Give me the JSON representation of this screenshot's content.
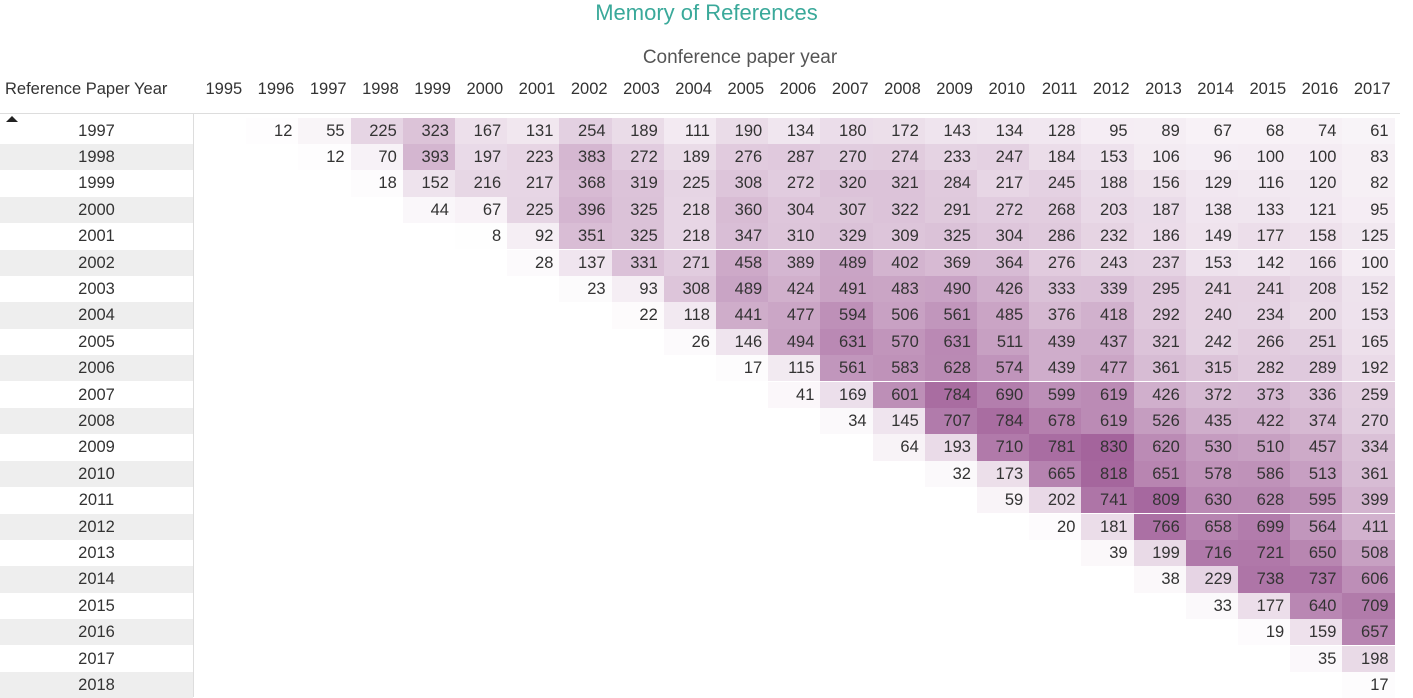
{
  "chart_data": {
    "type": "heatmap",
    "title": "Memory of References",
    "xlabel": "Conference paper year",
    "ylabel": "Reference Paper Year",
    "sort": "ascending",
    "color_low": "#ffffff",
    "color_high": "#a4649c",
    "columns": [
      "1995",
      "1996",
      "1997",
      "1998",
      "1999",
      "2000",
      "2001",
      "2002",
      "2003",
      "2004",
      "2005",
      "2006",
      "2007",
      "2008",
      "2009",
      "2010",
      "2011",
      "2012",
      "2013",
      "2014",
      "2015",
      "2016",
      "2017"
    ],
    "rows": [
      {
        "year": "1997",
        "values": [
          null,
          12,
          55,
          225,
          323,
          167,
          131,
          254,
          189,
          111,
          190,
          134,
          180,
          172,
          143,
          134,
          128,
          95,
          89,
          67,
          68,
          74,
          61
        ]
      },
      {
        "year": "1998",
        "values": [
          null,
          null,
          12,
          70,
          393,
          197,
          223,
          383,
          272,
          189,
          276,
          287,
          270,
          274,
          233,
          247,
          184,
          153,
          106,
          96,
          100,
          100,
          83
        ]
      },
      {
        "year": "1999",
        "values": [
          null,
          null,
          null,
          18,
          152,
          216,
          217,
          368,
          319,
          225,
          308,
          272,
          320,
          321,
          284,
          217,
          245,
          188,
          156,
          129,
          116,
          120,
          82
        ]
      },
      {
        "year": "2000",
        "values": [
          null,
          null,
          null,
          null,
          44,
          67,
          225,
          396,
          325,
          218,
          360,
          304,
          307,
          322,
          291,
          272,
          268,
          203,
          187,
          138,
          133,
          121,
          95
        ]
      },
      {
        "year": "2001",
        "values": [
          null,
          null,
          null,
          null,
          null,
          8,
          92,
          351,
          325,
          218,
          347,
          310,
          329,
          309,
          325,
          304,
          286,
          232,
          186,
          149,
          177,
          158,
          125
        ]
      },
      {
        "year": "2002",
        "values": [
          null,
          null,
          null,
          null,
          null,
          null,
          28,
          137,
          331,
          271,
          458,
          389,
          489,
          402,
          369,
          364,
          276,
          243,
          237,
          153,
          142,
          166,
          100
        ]
      },
      {
        "year": "2003",
        "values": [
          null,
          null,
          null,
          null,
          null,
          null,
          null,
          23,
          93,
          308,
          489,
          424,
          491,
          483,
          490,
          426,
          333,
          339,
          295,
          241,
          241,
          208,
          152
        ]
      },
      {
        "year": "2004",
        "values": [
          null,
          null,
          null,
          null,
          null,
          null,
          null,
          null,
          22,
          118,
          441,
          477,
          594,
          506,
          561,
          485,
          376,
          418,
          292,
          240,
          234,
          200,
          153
        ]
      },
      {
        "year": "2005",
        "values": [
          null,
          null,
          null,
          null,
          null,
          null,
          null,
          null,
          null,
          26,
          146,
          494,
          631,
          570,
          631,
          511,
          439,
          437,
          321,
          242,
          266,
          251,
          165
        ]
      },
      {
        "year": "2006",
        "values": [
          null,
          null,
          null,
          null,
          null,
          null,
          null,
          null,
          null,
          null,
          17,
          115,
          561,
          583,
          628,
          574,
          439,
          477,
          361,
          315,
          282,
          289,
          192
        ]
      },
      {
        "year": "2007",
        "values": [
          null,
          null,
          null,
          null,
          null,
          null,
          null,
          null,
          null,
          null,
          null,
          41,
          169,
          601,
          784,
          690,
          599,
          619,
          426,
          372,
          373,
          336,
          259
        ]
      },
      {
        "year": "2008",
        "values": [
          null,
          null,
          null,
          null,
          null,
          null,
          null,
          null,
          null,
          null,
          null,
          null,
          34,
          145,
          707,
          784,
          678,
          619,
          526,
          435,
          422,
          374,
          270
        ]
      },
      {
        "year": "2009",
        "values": [
          null,
          null,
          null,
          null,
          null,
          null,
          null,
          null,
          null,
          null,
          null,
          null,
          null,
          64,
          193,
          710,
          781,
          830,
          620,
          530,
          510,
          457,
          334
        ]
      },
      {
        "year": "2010",
        "values": [
          null,
          null,
          null,
          null,
          null,
          null,
          null,
          null,
          null,
          null,
          null,
          null,
          null,
          null,
          32,
          173,
          665,
          818,
          651,
          578,
          586,
          513,
          361
        ]
      },
      {
        "year": "2011",
        "values": [
          null,
          null,
          null,
          null,
          null,
          null,
          null,
          null,
          null,
          null,
          null,
          null,
          null,
          null,
          null,
          59,
          202,
          741,
          809,
          630,
          628,
          595,
          399
        ]
      },
      {
        "year": "2012",
        "values": [
          null,
          null,
          null,
          null,
          null,
          null,
          null,
          null,
          null,
          null,
          null,
          null,
          null,
          null,
          null,
          null,
          20,
          181,
          766,
          658,
          699,
          564,
          411
        ]
      },
      {
        "year": "2013",
        "values": [
          null,
          null,
          null,
          null,
          null,
          null,
          null,
          null,
          null,
          null,
          null,
          null,
          null,
          null,
          null,
          null,
          null,
          39,
          199,
          716,
          721,
          650,
          508
        ]
      },
      {
        "year": "2014",
        "values": [
          null,
          null,
          null,
          null,
          null,
          null,
          null,
          null,
          null,
          null,
          null,
          null,
          null,
          null,
          null,
          null,
          null,
          null,
          38,
          229,
          738,
          737,
          606
        ]
      },
      {
        "year": "2015",
        "values": [
          null,
          null,
          null,
          null,
          null,
          null,
          null,
          null,
          null,
          null,
          null,
          null,
          null,
          null,
          null,
          null,
          null,
          null,
          null,
          33,
          177,
          640,
          709
        ]
      },
      {
        "year": "2016",
        "values": [
          null,
          null,
          null,
          null,
          null,
          null,
          null,
          null,
          null,
          null,
          null,
          null,
          null,
          null,
          null,
          null,
          null,
          null,
          null,
          null,
          19,
          159,
          657
        ]
      },
      {
        "year": "2017",
        "values": [
          null,
          null,
          null,
          null,
          null,
          null,
          null,
          null,
          null,
          null,
          null,
          null,
          null,
          null,
          null,
          null,
          null,
          null,
          null,
          null,
          null,
          35,
          198
        ]
      },
      {
        "year": "2018",
        "values": [
          null,
          null,
          null,
          null,
          null,
          null,
          null,
          null,
          null,
          null,
          null,
          null,
          null,
          null,
          null,
          null,
          null,
          null,
          null,
          null,
          null,
          null,
          17
        ]
      }
    ]
  }
}
